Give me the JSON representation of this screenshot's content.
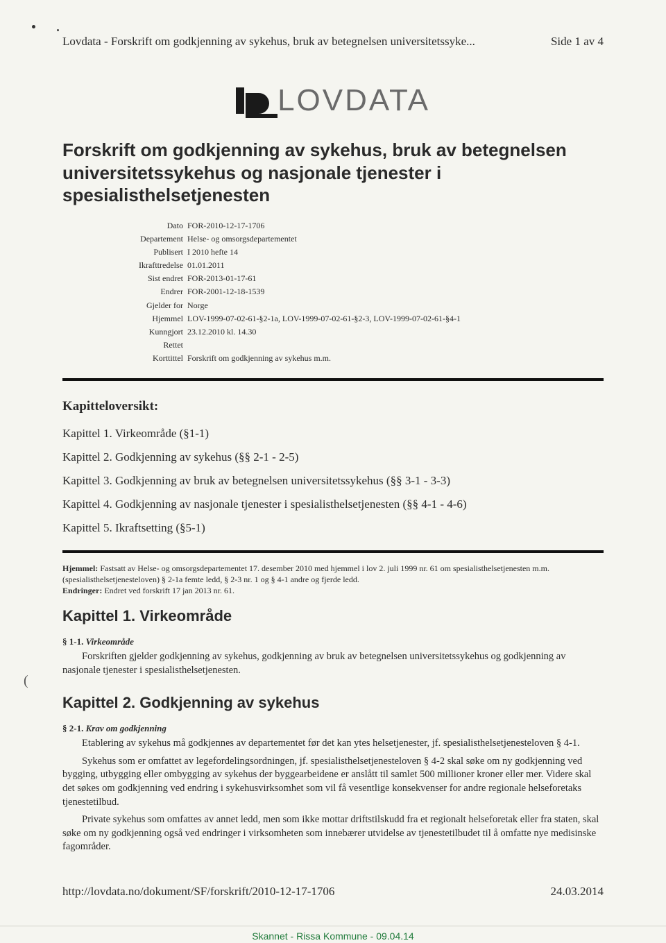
{
  "header": {
    "left": "Lovdata - Forskrift om godkjenning av sykehus, bruk av betegnelsen universitetssyke...",
    "right": "Side 1 av 4"
  },
  "logo_text": "LOVDATA",
  "main_title": "Forskrift om godkjenning av sykehus, bruk av betegnelsen universitetssykehus og nasjonale tjenester i spesialisthelsetjenesten",
  "meta": {
    "rows": [
      {
        "label": "Dato",
        "value": "FOR-2010-12-17-1706"
      },
      {
        "label": "Departement",
        "value": "Helse- og omsorgsdepartementet"
      },
      {
        "label": "Publisert",
        "value": "I 2010 hefte 14"
      },
      {
        "label": "Ikrafttredelse",
        "value": "01.01.2011"
      },
      {
        "label": "Sist endret",
        "value": "FOR-2013-01-17-61"
      },
      {
        "label": "Endrer",
        "value": "FOR-2001-12-18-1539"
      },
      {
        "label": "Gjelder for",
        "value": "Norge"
      },
      {
        "label": "Hjemmel",
        "value": "LOV-1999-07-02-61-§2-1a, LOV-1999-07-02-61-§2-3, LOV-1999-07-02-61-§4-1"
      },
      {
        "label": "Kunngjort",
        "value": "23.12.2010   kl. 14.30"
      },
      {
        "label": "Rettet",
        "value": ""
      },
      {
        "label": "Korttittel",
        "value": "Forskrift om godkjenning av sykehus m.m."
      }
    ]
  },
  "kapittel_heading": "Kapitteloversikt:",
  "chapters": [
    "Kapittel 1. Virkeområde (§1-1)",
    "Kapittel 2. Godkjenning av sykehus (§§ 2-1 - 2-5)",
    "Kapittel 3. Godkjenning av bruk av betegnelsen universitetssykehus (§§ 3-1 - 3-3)",
    "Kapittel 4. Godkjenning av nasjonale tjenester i spesialisthelsetjenesten (§§ 4-1 - 4-6)",
    "Kapittel 5. Ikraftsetting (§5-1)"
  ],
  "footnote": {
    "hjemmel_label": "Hjemmel:",
    "hjemmel_text": " Fastsatt av Helse- og omsorgsdepartementet 17. desember 2010 med hjemmel i lov 2. juli 1999 nr. 61 om spesialisthelsetjenesten m.m. (spesialisthelsetjenesteloven) § 2-1a femte ledd, § 2-3 nr. 1 og § 4-1 andre og fjerde ledd.",
    "endringer_label": "Endringer:",
    "endringer_text": " Endret ved forskrift 17 jan 2013 nr. 61."
  },
  "kap1": {
    "heading": "Kapittel 1. Virkeområde",
    "para_num": "§ 1-1.",
    "para_name": "Virkeområde",
    "body": "Forskriften gjelder godkjenning av sykehus, godkjenning av bruk av betegnelsen universitetssykehus og godkjenning av nasjonale tjenester i spesialisthelsetjenesten."
  },
  "kap2": {
    "heading": "Kapittel 2. Godkjenning av sykehus",
    "para_num": "§ 2-1.",
    "para_name": "Krav om godkjenning",
    "body1": "Etablering av sykehus må godkjennes av departementet før det kan ytes helsetjenester, jf. spesialisthelsetjenesteloven § 4-1.",
    "body2": "Sykehus som er omfattet av legefordelingsordningen, jf. spesialisthelsetjenesteloven § 4-2 skal søke om ny godkjenning ved bygging, utbygging eller ombygging av sykehus der byggearbeidene er anslått til samlet 500 millioner kroner eller mer. Videre skal det søkes om godkjenning ved endring i sykehusvirksomhet som vil få vesentlige konsekvenser for andre regionale helseforetaks tjenestetilbud.",
    "body3": "Private sykehus som omfattes av annet ledd, men som ikke mottar driftstilskudd fra et regionalt helseforetak eller fra staten, skal søke om ny godkjenning også ved endringer i virksomheten som innebærer utvidelse av tjenestetilbudet til å omfatte nye medisinske fagområder."
  },
  "footer": {
    "url": "http://lovdata.no/dokument/SF/forskrift/2010-12-17-1706",
    "date": "24.03.2014"
  },
  "scan_banner": "Skannet - Rissa Kommune - 09.04.14",
  "paren": "("
}
